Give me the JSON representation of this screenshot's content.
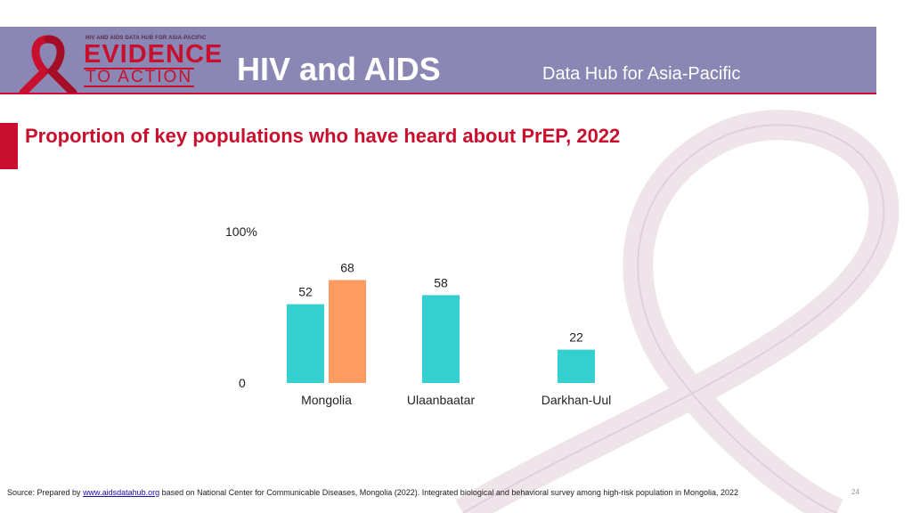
{
  "header": {
    "logo_small": "HIV AND AIDS DATA HUB FOR ASIA-PACIFIC",
    "logo_big": "EVIDENCE",
    "logo_sub": "TO ACTION",
    "title": "HIV and AIDS",
    "subtitle": "Data Hub for Asia-Pacific"
  },
  "slide": {
    "title": "Proportion of key populations who have heard about PrEP, 2022"
  },
  "chart_data": {
    "type": "bar",
    "categories": [
      "Mongolia",
      "Ulaanbaatar",
      "Darkhan-Uul"
    ],
    "series": [
      {
        "values": [
          52,
          58,
          22
        ],
        "color": "#36cfcf"
      },
      {
        "values": [
          68,
          null,
          null
        ],
        "color": "#fd9b63"
      }
    ],
    "ylim": [
      0,
      100
    ],
    "y_top_label": "100%",
    "y_bottom_label": "0",
    "grid": false,
    "legend": "none"
  },
  "footer": {
    "source_prefix": "Source: Prepared by ",
    "link_text": "www.aidsdatahub.org",
    "source_rest": "  based on National Center for Communicable Diseases, Mongolia (2022). Integrated biological and behavioral survey among high-risk population in Mongolia, 2022",
    "page_number": "24"
  },
  "colors": {
    "banner": "#8a87b4",
    "accent": "#c8102e",
    "ribbon": "#efe4ea"
  }
}
